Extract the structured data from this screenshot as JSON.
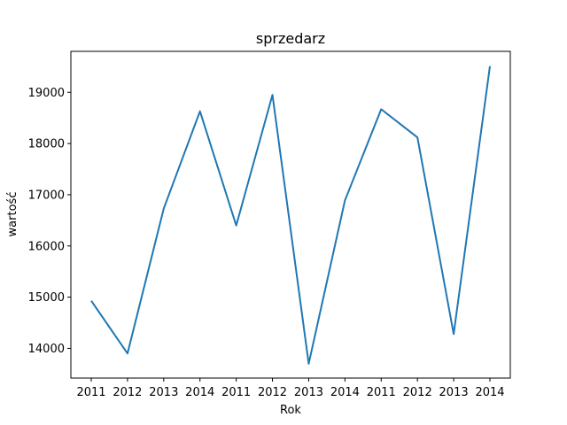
{
  "chart_data": {
    "type": "line",
    "title": "sprzedarz",
    "xlabel": "Rok",
    "ylabel": "wartość",
    "categories": [
      "2011",
      "2012",
      "2013",
      "2014",
      "2011",
      "2012",
      "2013",
      "2014",
      "2011",
      "2012",
      "2013",
      "2014"
    ],
    "series": [
      {
        "values": [
          14930,
          13900,
          16730,
          18630,
          16400,
          18950,
          13700,
          16890,
          18670,
          18120,
          14280,
          19510
        ]
      }
    ],
    "ylim": [
      13420,
      19800
    ],
    "yticks": [
      14000,
      15000,
      16000,
      17000,
      18000,
      19000
    ],
    "grid": false,
    "line_color": "#1f77b4"
  }
}
